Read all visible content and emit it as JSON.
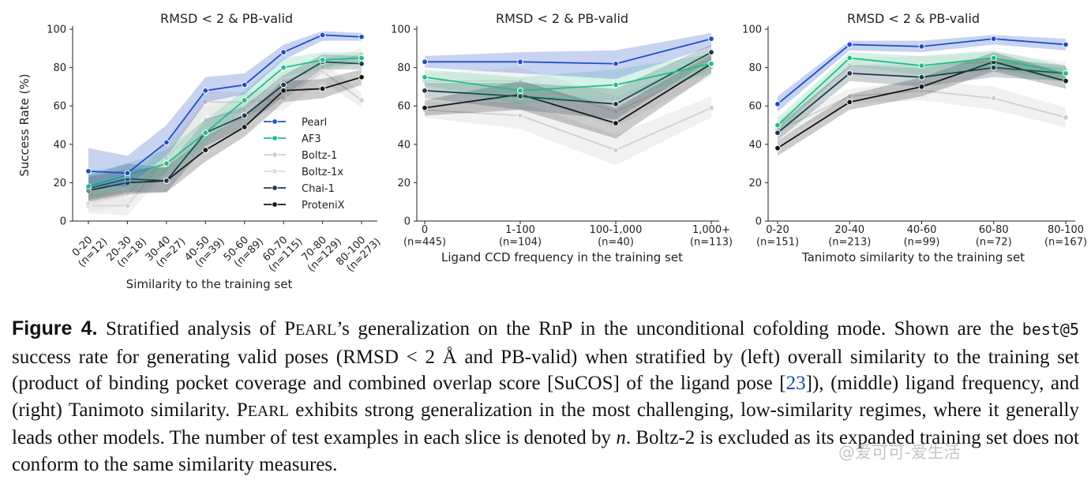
{
  "models": [
    {
      "name": "Pearl",
      "color": "#1f4fc9",
      "band": "#1f4fc9",
      "band_opacity": 0.25,
      "marker_edge": "#ffffff"
    },
    {
      "name": "AF3",
      "color": "#1fbf86",
      "band": "#1fbf86",
      "band_opacity": 0.18,
      "marker_edge": "#ffffff"
    },
    {
      "name": "Boltz-1",
      "color": "#cfcfcf",
      "band": "#d8d8d8",
      "band_opacity": 0.35,
      "marker_edge": "#ffffff"
    },
    {
      "name": "Boltz-1x",
      "color": "#dcdcdc",
      "band": "#e0e0e0",
      "band_opacity": 0.35,
      "marker_edge": "#ffffff"
    },
    {
      "name": "Chai-1",
      "color": "#1c3b4a",
      "band": "#1c3b4a",
      "band_opacity": 0.22,
      "marker_edge": "#ffffff"
    },
    {
      "name": "ProteniX",
      "color": "#151515",
      "band": "#151515",
      "band_opacity": 0.22,
      "marker_edge": "#ffffff"
    }
  ],
  "chart_data": [
    {
      "type": "line",
      "title": "RMSD < 2 & PB-valid",
      "ylabel": "Success Rate (%)",
      "xlabel": "Similarity to the training set",
      "ylim": [
        0,
        100
      ],
      "yticks": [
        0,
        20,
        40,
        60,
        80,
        100
      ],
      "tick_rotation": -45,
      "categories": [
        "0-20\n(n=12)",
        "20-30\n(n=18)",
        "30-40\n(n=27)",
        "40-50\n(n=39)",
        "50-60\n(n=89)",
        "60-70\n(n=115)",
        "70-80\n(n=129)",
        "80-100\n(n=273)"
      ],
      "legend": "right-inside",
      "series": [
        {
          "name": "Pearl",
          "values": [
            26,
            25,
            41,
            68,
            71,
            88,
            97,
            96
          ],
          "lower": [
            18,
            18,
            34,
            62,
            66,
            84,
            94,
            94
          ],
          "upper": [
            38,
            34,
            50,
            75,
            77,
            92,
            99,
            98
          ]
        },
        {
          "name": "AF3",
          "values": [
            18,
            24,
            30,
            46,
            63,
            80,
            84,
            85
          ],
          "lower": [
            12,
            17,
            24,
            40,
            58,
            75,
            80,
            82
          ],
          "upper": [
            25,
            30,
            37,
            53,
            68,
            85,
            88,
            88
          ]
        },
        {
          "name": "Boltz-1",
          "values": [
            8,
            8,
            34,
            62,
            62,
            64,
            78,
            63
          ],
          "lower": [
            4,
            3,
            26,
            55,
            56,
            58,
            73,
            59
          ],
          "upper": [
            14,
            16,
            42,
            68,
            67,
            70,
            83,
            67
          ]
        },
        {
          "name": "Boltz-1x",
          "values": [
            9,
            14,
            33,
            53,
            58,
            73,
            80,
            87
          ],
          "lower": [
            5,
            8,
            26,
            47,
            53,
            67,
            76,
            84
          ],
          "upper": [
            15,
            22,
            41,
            60,
            63,
            78,
            84,
            90
          ]
        },
        {
          "name": "Chai-1",
          "values": [
            17,
            22,
            21,
            46,
            55,
            71,
            83,
            82
          ],
          "lower": [
            11,
            15,
            15,
            39,
            49,
            65,
            79,
            79
          ],
          "upper": [
            24,
            30,
            28,
            53,
            60,
            76,
            87,
            86
          ]
        },
        {
          "name": "ProteniX",
          "values": [
            16,
            20,
            21,
            37,
            49,
            68,
            69,
            75
          ],
          "lower": [
            10,
            14,
            15,
            31,
            44,
            62,
            64,
            71
          ],
          "upper": [
            23,
            27,
            28,
            44,
            55,
            73,
            74,
            79
          ]
        }
      ]
    },
    {
      "type": "line",
      "title": "RMSD < 2 & PB-valid",
      "ylabel": "",
      "xlabel": "Ligand CCD frequency in the training set",
      "ylim": [
        0,
        100
      ],
      "yticks": [
        0,
        20,
        40,
        60,
        80,
        100
      ],
      "tick_rotation": 0,
      "categories": [
        "0\n(n=445)",
        "1-100\n(n=104)",
        "100-1,000\n(n=40)",
        "1,000+\n(n=113)"
      ],
      "legend": "none",
      "series": [
        {
          "name": "Pearl",
          "values": [
            83,
            83,
            82,
            95
          ],
          "lower": [
            80,
            77,
            74,
            91
          ],
          "upper": [
            86,
            88,
            89,
            98
          ]
        },
        {
          "name": "AF3",
          "values": [
            75,
            68,
            71,
            82
          ],
          "lower": [
            71,
            61,
            63,
            77
          ],
          "upper": [
            79,
            75,
            79,
            87
          ]
        },
        {
          "name": "Boltz-1",
          "values": [
            58,
            55,
            37,
            59
          ],
          "lower": [
            54,
            48,
            29,
            54
          ],
          "upper": [
            62,
            62,
            45,
            65
          ]
        },
        {
          "name": "Boltz-1x",
          "values": [
            73,
            73,
            57,
            80
          ],
          "lower": [
            69,
            66,
            49,
            75
          ],
          "upper": [
            77,
            80,
            65,
            85
          ]
        },
        {
          "name": "Chai-1",
          "values": [
            68,
            65,
            61,
            88
          ],
          "lower": [
            64,
            58,
            53,
            84
          ],
          "upper": [
            72,
            72,
            69,
            92
          ]
        },
        {
          "name": "ProteniX",
          "values": [
            59,
            66,
            51,
            82
          ],
          "lower": [
            55,
            58,
            43,
            77
          ],
          "upper": [
            63,
            73,
            59,
            87
          ]
        }
      ]
    },
    {
      "type": "line",
      "title": "RMSD < 2 & PB-valid",
      "ylabel": "",
      "xlabel": "Tanimoto similarity to the training set",
      "ylim": [
        0,
        100
      ],
      "yticks": [
        0,
        20,
        40,
        60,
        80,
        100
      ],
      "tick_rotation": 0,
      "categories": [
        "0-20\n(n=151)",
        "20-40\n(n=213)",
        "40-60\n(n=99)",
        "60-80\n(n=72)",
        "80-100\n(n=167)"
      ],
      "legend": "none",
      "series": [
        {
          "name": "Pearl",
          "values": [
            61,
            92,
            91,
            95,
            92
          ],
          "lower": [
            57,
            89,
            88,
            92,
            89
          ],
          "upper": [
            65,
            94,
            94,
            97,
            95
          ]
        },
        {
          "name": "AF3",
          "values": [
            50,
            85,
            81,
            85,
            77
          ],
          "lower": [
            46,
            81,
            76,
            80,
            72
          ],
          "upper": [
            54,
            88,
            86,
            89,
            81
          ]
        },
        {
          "name": "Boltz-1",
          "values": [
            47,
            65,
            68,
            64,
            54
          ],
          "lower": [
            43,
            61,
            63,
            58,
            49
          ],
          "upper": [
            51,
            69,
            73,
            70,
            59
          ]
        },
        {
          "name": "Boltz-1x",
          "values": [
            48,
            81,
            81,
            83,
            79
          ],
          "lower": [
            44,
            77,
            76,
            78,
            75
          ],
          "upper": [
            52,
            85,
            86,
            88,
            83
          ]
        },
        {
          "name": "Chai-1",
          "values": [
            46,
            77,
            75,
            80,
            77
          ],
          "lower": [
            42,
            73,
            70,
            75,
            73
          ],
          "upper": [
            50,
            81,
            80,
            85,
            81
          ]
        },
        {
          "name": "ProteniX",
          "values": [
            38,
            62,
            70,
            83,
            73
          ],
          "lower": [
            34,
            58,
            65,
            78,
            69
          ],
          "upper": [
            42,
            66,
            75,
            88,
            77
          ]
        }
      ]
    }
  ],
  "caption": {
    "label": "Figure 4.",
    "intro": "Stratified analysis of ",
    "pearl_p": "P",
    "pearl_rest": "EARL",
    "after_pearl": "’s generalization on the RnP in the unconditional cofolding mode. Shown are the ",
    "metric_code": "best@5",
    "after_code": " success rate for generating valid poses (RMSD < 2 Å and PB-valid) when stratified by (left) overall similarity to the training set (product of binding pocket coverage and combined overlap score [SuCOS] of the ligand pose [",
    "ref_number": "23",
    "after_ref": "]), (middle) ligand frequency, and (right) Tanimoto similarity. ",
    "pearl2_p": "P",
    "pearl2_rest": "EARL",
    "after_pearl2": " exhibits strong generalization in the most challenging, low-similarity regimes, where it generally leads other models. The number of test examples in each slice is denoted by ",
    "n_symbol": "n",
    "ending": ". Boltz-2 is excluded as its expanded training set does not conform to the same similarity measures."
  },
  "watermark": "@爱可可-爱生活"
}
